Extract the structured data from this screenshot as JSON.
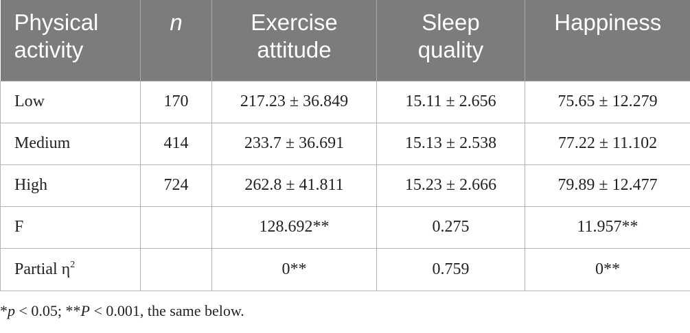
{
  "table": {
    "headers": [
      {
        "line1": "Physical",
        "line2": "activity"
      },
      {
        "line1": "n",
        "line2": ""
      },
      {
        "line1": "Exercise",
        "line2": "attitude"
      },
      {
        "line1": "Sleep",
        "line2": "quality"
      },
      {
        "line1": "Happiness",
        "line2": ""
      }
    ],
    "rows": [
      {
        "label": "Low",
        "n": "170",
        "exercise": "217.23 ± 36.849",
        "sleep": "15.11 ± 2.656",
        "happiness": "75.65 ± 12.279"
      },
      {
        "label": "Medium",
        "n": "414",
        "exercise": "233.7 ± 36.691",
        "sleep": "15.13 ± 2.538",
        "happiness": "77.22 ± 11.102"
      },
      {
        "label": "High",
        "n": "724",
        "exercise": "262.8 ± 41.811",
        "sleep": "15.23 ± 2.666",
        "happiness": "79.89 ± 12.477"
      },
      {
        "label": "F",
        "n": "",
        "exercise": "128.692**",
        "sleep": "0.275",
        "happiness": "11.957**"
      },
      {
        "label": "Partial η",
        "label_sup": "2",
        "n": "",
        "exercise": "0**",
        "sleep": "0.759",
        "happiness": "0**"
      }
    ]
  },
  "footnote": {
    "part1_sym": "*",
    "part1_var": "p",
    "part1_rest": " < 0.05; **",
    "part2_var": "P",
    "part2_rest": " < 0.001, the same below."
  },
  "colors": {
    "header_bg": "#7b7c7e",
    "header_text": "#ffffff",
    "grid": "#b4b4b4"
  }
}
